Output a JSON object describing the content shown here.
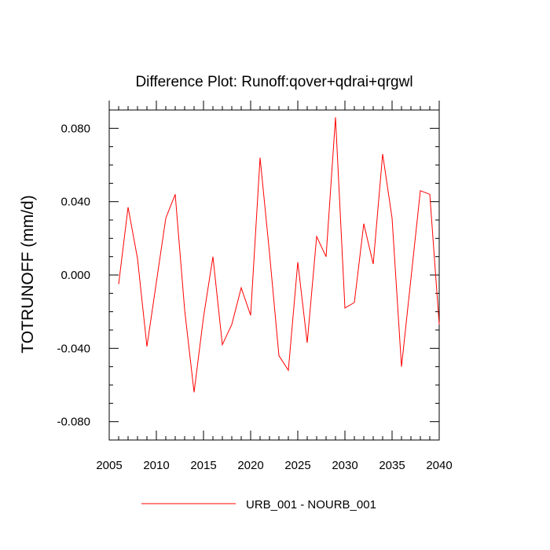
{
  "chart_data": {
    "type": "line",
    "title": "Difference Plot: Runoff:qover+qdrai+qrgwl",
    "ylabel": "TOTRUNOFF  (mm/d)",
    "xlabel": "",
    "xlim": [
      2005,
      2040
    ],
    "ylim": [
      -0.09,
      0.09
    ],
    "x_ticks": [
      2005,
      2010,
      2015,
      2020,
      2025,
      2030,
      2035,
      2040
    ],
    "x_tick_labels": [
      "2005",
      "2010",
      "2015",
      "2020",
      "2025",
      "2030",
      "2035",
      "2040"
    ],
    "y_ticks": [
      -0.08,
      -0.04,
      0.0,
      0.04,
      0.08
    ],
    "y_tick_labels": [
      "-0.080",
      "-0.040",
      "0.000",
      "0.040",
      "0.080"
    ],
    "grid": false,
    "legend_position": "bottom",
    "x": [
      2006,
      2007,
      2008,
      2009,
      2010,
      2011,
      2012,
      2013,
      2014,
      2015,
      2016,
      2017,
      2018,
      2019,
      2020,
      2021,
      2022,
      2023,
      2024,
      2025,
      2026,
      2027,
      2028,
      2029,
      2030,
      2031,
      2032,
      2033,
      2034,
      2035,
      2036,
      2037,
      2038,
      2039,
      2040
    ],
    "series": [
      {
        "name": "URB_001 - NOURB_001",
        "color": "#ff0000",
        "values": [
          -0.005,
          0.037,
          0.009,
          -0.039,
          -0.004,
          0.031,
          0.044,
          -0.019,
          -0.064,
          -0.023,
          0.01,
          -0.038,
          -0.027,
          -0.007,
          -0.022,
          0.064,
          0.012,
          -0.044,
          -0.052,
          0.007,
          -0.037,
          0.021,
          0.01,
          0.086,
          -0.018,
          -0.015,
          0.028,
          0.006,
          0.066,
          0.031,
          -0.05,
          -0.002,
          0.046,
          0.044,
          -0.027
        ]
      }
    ]
  }
}
